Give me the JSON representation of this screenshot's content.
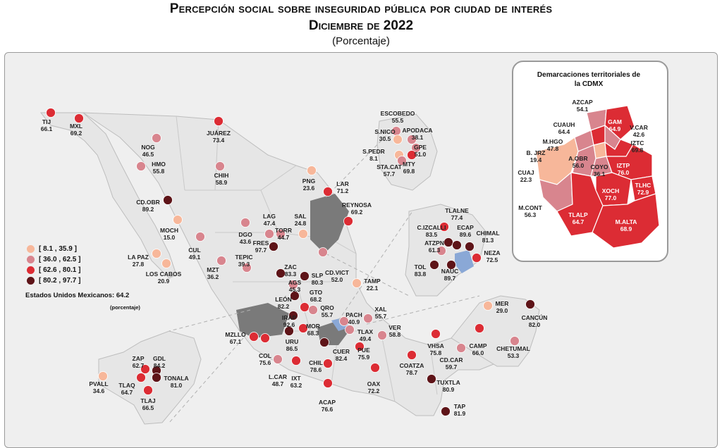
{
  "title": {
    "line1": "Percepción social sobre inseguridad pública por ciudad de interés",
    "line2": "Diciembre de 2022",
    "line3": "(Porcentaje)"
  },
  "legend": {
    "items": [
      {
        "label": "[  8.1 , 35.9 ]",
        "color": "#f7b79a"
      },
      {
        "label": "[ 36.0 , 62.5 ]",
        "color": "#d8858e"
      },
      {
        "label": "[ 62.6 , 80.1 ]",
        "color": "#dc2c34"
      },
      {
        "label": "[ 80.2 , 97.7 ]",
        "color": "#5e1418"
      }
    ]
  },
  "national": {
    "label": "Estados Unidos Mexicanos:",
    "value": "64.2",
    "unit": "(porcentaje)"
  },
  "cdmx": {
    "title_line1": "Demarcaciones territoriales de",
    "title_line2": "la CDMX"
  },
  "cities": [
    {
      "name": "TIJ",
      "value": "66.1",
      "cls": 3
    },
    {
      "name": "MXL",
      "value": "69.2",
      "cls": 3
    },
    {
      "name": "NOG",
      "value": "46.5",
      "cls": 2
    },
    {
      "name": "JUÁREZ",
      "value": "73.4",
      "cls": 3
    },
    {
      "name": "HMO",
      "value": "55.8",
      "cls": 2
    },
    {
      "name": "CHIH",
      "value": "58.9",
      "cls": 2
    },
    {
      "name": "CD.OBR",
      "value": "89.2",
      "cls": 4
    },
    {
      "name": "MOCH",
      "value": "15.0",
      "cls": 1
    },
    {
      "name": "LA PAZ",
      "value": "27.8",
      "cls": 1
    },
    {
      "name": "LOS CABOS",
      "value": "20.9",
      "cls": 1
    },
    {
      "name": "CUL",
      "value": "49.1",
      "cls": 2
    },
    {
      "name": "MZT",
      "value": "36.2",
      "cls": 2
    },
    {
      "name": "DGO",
      "value": "43.6",
      "cls": 2
    },
    {
      "name": "LAG",
      "value": "47.4",
      "cls": 2
    },
    {
      "name": "TORR",
      "value": "44.7",
      "cls": 2
    },
    {
      "name": "SAL",
      "value": "24.8",
      "cls": 1
    },
    {
      "name": "PNG",
      "value": "23.6",
      "cls": 1
    },
    {
      "name": "LAR",
      "value": "71.2",
      "cls": 3
    },
    {
      "name": "REYNOSA",
      "value": "69.2",
      "cls": 3
    },
    {
      "name": "ESCOBEDO",
      "value": "55.5",
      "cls": 2
    },
    {
      "name": "S.NICO",
      "value": "30.5",
      "cls": 1
    },
    {
      "name": "APODACA",
      "value": "38.1",
      "cls": 2
    },
    {
      "name": "GPE",
      "value": "51.0",
      "cls": 2
    },
    {
      "name": "S.PEDR",
      "value": "8.1",
      "cls": 1
    },
    {
      "name": "MTY",
      "value": "69.8",
      "cls": 3
    },
    {
      "name": "STA.CAT",
      "value": "57.7",
      "cls": 2
    },
    {
      "name": "TEPIC",
      "value": "39.3",
      "cls": 2
    },
    {
      "name": "FRES",
      "value": "97.7",
      "cls": 4
    },
    {
      "name": "ZAC",
      "value": "83.3",
      "cls": 4
    },
    {
      "name": "AGS",
      "value": "45.3",
      "cls": 2
    },
    {
      "name": "SLP",
      "value": "80.3",
      "cls": 4
    },
    {
      "name": "CD.VICT",
      "value": "52.0",
      "cls": 2
    },
    {
      "name": "TAMP",
      "value": "22.1",
      "cls": 1
    },
    {
      "name": "LEÓN",
      "value": "82.2",
      "cls": 4
    },
    {
      "name": "GTO",
      "value": "68.2",
      "cls": 3
    },
    {
      "name": "IRAP",
      "value": "92.6",
      "cls": 4
    },
    {
      "name": "QRO",
      "value": "55.7",
      "cls": 2
    },
    {
      "name": "PACH",
      "value": "40.9",
      "cls": 2
    },
    {
      "name": "XAL",
      "value": "55.7",
      "cls": 2
    },
    {
      "name": "MOR",
      "value": "68.3",
      "cls": 3
    },
    {
      "name": "URU",
      "value": "86.5",
      "cls": 4
    },
    {
      "name": "TLAX",
      "value": "49.4",
      "cls": 2
    },
    {
      "name": "VER",
      "value": "58.8",
      "cls": 2
    },
    {
      "name": "MZLLO",
      "value": "67.1",
      "cls": 3
    },
    {
      "name": "COL",
      "value": "75.6",
      "cls": 3
    },
    {
      "name": "CUER",
      "value": "82.4",
      "cls": 4
    },
    {
      "name": "PUE",
      "value": "75.9",
      "cls": 3
    },
    {
      "name": "L.CAR",
      "value": "48.7",
      "cls": 2
    },
    {
      "name": "IXT",
      "value": "63.2",
      "cls": 3
    },
    {
      "name": "CHIL",
      "value": "78.6",
      "cls": 3
    },
    {
      "name": "ACAP",
      "value": "76.6",
      "cls": 3
    },
    {
      "name": "OAX",
      "value": "72.2",
      "cls": 3
    },
    {
      "name": "COATZA",
      "value": "78.7",
      "cls": 3
    },
    {
      "name": "VHSA",
      "value": "75.8",
      "cls": 3
    },
    {
      "name": "CD.CAR",
      "value": "59.7",
      "cls": 2
    },
    {
      "name": "CAMP",
      "value": "66.0",
      "cls": 3
    },
    {
      "name": "MER",
      "value": "29.0",
      "cls": 1
    },
    {
      "name": "CANCÚN",
      "value": "82.0",
      "cls": 4
    },
    {
      "name": "CHETUMAL",
      "value": "53.3",
      "cls": 2
    },
    {
      "name": "TUXTLA",
      "value": "80.9",
      "cls": 4
    },
    {
      "name": "TAP",
      "value": "81.9",
      "cls": 4
    },
    {
      "name": "PVALL",
      "value": "34.6",
      "cls": 1
    },
    {
      "name": "ZAP",
      "value": "62.7",
      "cls": 3
    },
    {
      "name": "GDL",
      "value": "84.2",
      "cls": 4
    },
    {
      "name": "TONALA",
      "value": "81.0",
      "cls": 4
    },
    {
      "name": "TLAQ",
      "value": "64.7",
      "cls": 3
    },
    {
      "name": "TLAJ",
      "value": "66.5",
      "cls": 3
    },
    {
      "name": "TLALNE",
      "value": "77.4",
      "cls": 3
    },
    {
      "name": "C.IZCALLI",
      "value": "83.5",
      "cls": 4
    },
    {
      "name": "ECAP",
      "value": "89.6",
      "cls": 4
    },
    {
      "name": "CHIMAL",
      "value": "81.3",
      "cls": 4
    },
    {
      "name": "ATZPN",
      "value": "61.3",
      "cls": 2
    },
    {
      "name": "NEZA",
      "value": "72.5",
      "cls": 3
    },
    {
      "name": "TOL",
      "value": "83.8",
      "cls": 4
    },
    {
      "name": "NAUC",
      "value": "89.7",
      "cls": 4
    }
  ],
  "alcaldias": [
    {
      "name": "AZCAP",
      "value": "54.1",
      "cls": 2
    },
    {
      "name": "CUAUH",
      "value": "64.4",
      "cls": 3
    },
    {
      "name": "GAM",
      "value": "64.9",
      "cls": 3
    },
    {
      "name": "V.CAR",
      "value": "42.6",
      "cls": 2
    },
    {
      "name": "M.HGO",
      "value": "47.8",
      "cls": 2
    },
    {
      "name": "IZTC",
      "value": "69.8",
      "cls": 3
    },
    {
      "name": "B. JRZ",
      "value": "19.4",
      "cls": 1
    },
    {
      "name": "A.OBR",
      "value": "56.0",
      "cls": 2
    },
    {
      "name": "COYO",
      "value": "36.1",
      "cls": 2
    },
    {
      "name": "IZTP",
      "value": "76.0",
      "cls": 3
    },
    {
      "name": "CUAJ",
      "value": "22.3",
      "cls": 1
    },
    {
      "name": "TLHC",
      "value": "72.9",
      "cls": 3
    },
    {
      "name": "XOCH",
      "value": "77.0",
      "cls": 3
    },
    {
      "name": "M.CONT",
      "value": "56.3",
      "cls": 2
    },
    {
      "name": "TLALP",
      "value": "64.7",
      "cls": 3
    },
    {
      "name": "M.ALTA",
      "value": "68.9",
      "cls": 3
    }
  ]
}
